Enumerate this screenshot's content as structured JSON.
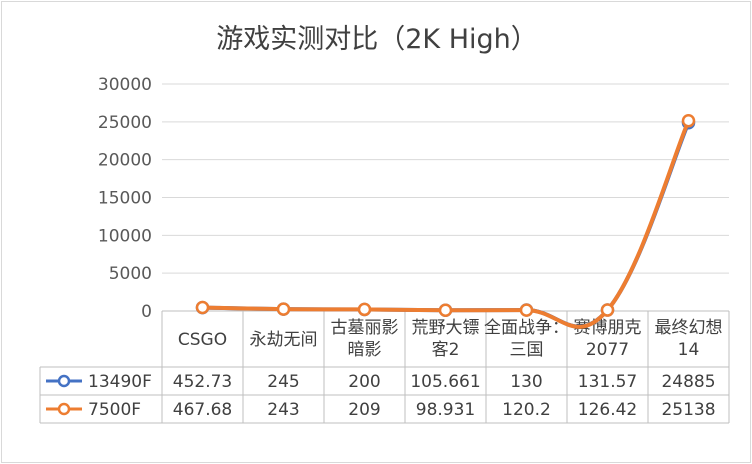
{
  "chart_data": {
    "type": "line",
    "title": "游戏实测对比（2K High）",
    "categories": [
      [
        "CSGO"
      ],
      [
        "永劫无间"
      ],
      [
        "古墓丽影",
        "暗影"
      ],
      [
        "荒野大镖",
        "客2"
      ],
      [
        "全面战争：",
        "三国"
      ],
      [
        "赛博朋克",
        "2077"
      ],
      [
        "最终幻想",
        "14"
      ]
    ],
    "series": [
      {
        "name": "13490F",
        "color": "#4472C4",
        "values": [
          452.73,
          245,
          200,
          105.661,
          130,
          131.57,
          24885
        ]
      },
      {
        "name": "7500F",
        "color": "#ED7D31",
        "values": [
          467.68,
          243,
          209,
          98.931,
          120.2,
          126.42,
          25138
        ]
      }
    ],
    "ylim": [
      0,
      30000
    ],
    "yticks": [
      0,
      5000,
      10000,
      15000,
      20000,
      25000,
      30000
    ],
    "grid": true,
    "legend": "data-table"
  }
}
